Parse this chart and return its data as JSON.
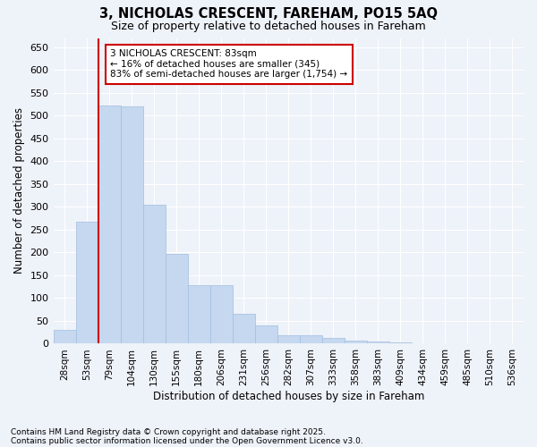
{
  "title": "3, NICHOLAS CRESCENT, FAREHAM, PO15 5AQ",
  "subtitle": "Size of property relative to detached houses in Fareham",
  "xlabel": "Distribution of detached houses by size in Fareham",
  "ylabel": "Number of detached properties",
  "bar_color": "#c5d8f0",
  "bar_edge_color": "#a0bede",
  "background_color": "#eef2f9",
  "grid_color": "#ffffff",
  "vline_x": 2,
  "vline_color": "#cc0000",
  "categories": [
    "28sqm",
    "53sqm",
    "79sqm",
    "104sqm",
    "130sqm",
    "155sqm",
    "180sqm",
    "206sqm",
    "231sqm",
    "256sqm",
    "282sqm",
    "307sqm",
    "333sqm",
    "358sqm",
    "383sqm",
    "409sqm",
    "434sqm",
    "459sqm",
    "485sqm",
    "510sqm",
    "536sqm"
  ],
  "values": [
    30,
    268,
    522,
    520,
    305,
    197,
    128,
    128,
    65,
    40,
    19,
    18,
    12,
    6,
    5,
    2,
    1,
    0,
    0,
    0,
    1
  ],
  "ylim": [
    0,
    670
  ],
  "yticks": [
    0,
    50,
    100,
    150,
    200,
    250,
    300,
    350,
    400,
    450,
    500,
    550,
    600,
    650
  ],
  "annotation_text": "3 NICHOLAS CRESCENT: 83sqm\n← 16% of detached houses are smaller (345)\n83% of semi-detached houses are larger (1,754) →",
  "annotation_box_color": "#ffffff",
  "annotation_box_edge_color": "#cc0000",
  "footnote1": "Contains HM Land Registry data © Crown copyright and database right 2025.",
  "footnote2": "Contains public sector information licensed under the Open Government Licence v3.0."
}
